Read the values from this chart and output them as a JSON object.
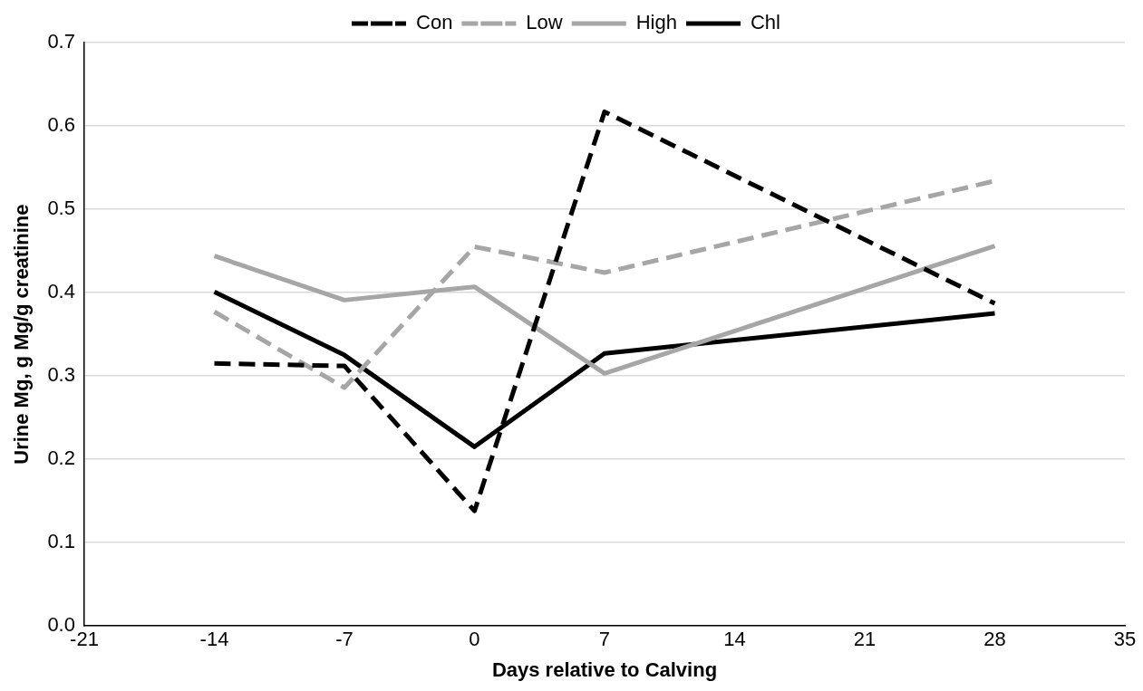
{
  "chart_data": {
    "type": "line",
    "xlabel": "Days relative to Calving",
    "ylabel": "Urine Mg, g Mg/g creatinine",
    "x": [
      -14,
      -7,
      0,
      7,
      28
    ],
    "series": [
      {
        "name": "Con",
        "color": "#000000",
        "line_style": "dashed",
        "values": [
          0.315,
          0.312,
          0.138,
          0.617,
          0.387
        ]
      },
      {
        "name": "Low",
        "color": "#a6a6a6",
        "line_style": "dashed",
        "values": [
          0.377,
          0.286,
          0.455,
          0.424,
          0.534
        ]
      },
      {
        "name": "High",
        "color": "#a6a6a6",
        "line_style": "solid",
        "values": [
          0.444,
          0.391,
          0.407,
          0.303,
          0.456
        ]
      },
      {
        "name": "Chl",
        "color": "#000000",
        "line_style": "solid",
        "values": [
          0.401,
          0.325,
          0.215,
          0.327,
          0.375
        ]
      }
    ],
    "xlim": [
      -21,
      35
    ],
    "xticks": [
      -21,
      -14,
      -7,
      0,
      7,
      14,
      21,
      28,
      35
    ],
    "ylim": [
      0,
      0.7
    ],
    "yticks": [
      {
        "value": 0,
        "label": "0.0"
      },
      0.1,
      0.2,
      0.3,
      0.4,
      0.5,
      0.6,
      0.7
    ],
    "grid": "y",
    "legend": "top",
    "marker": "none"
  }
}
